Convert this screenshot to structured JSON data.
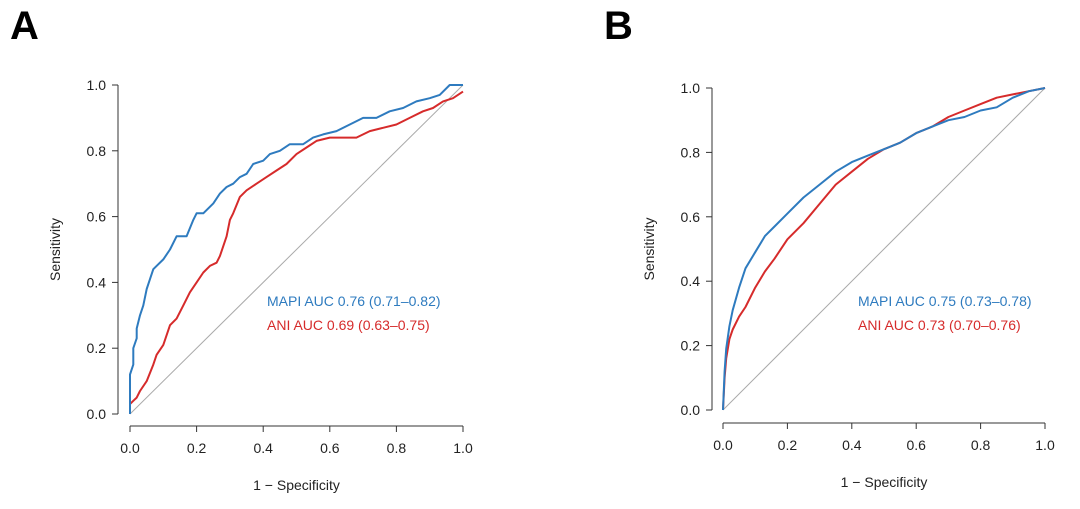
{
  "panels": [
    {
      "letter": "A"
    },
    {
      "letter": "B"
    }
  ],
  "chart_data": [
    {
      "type": "line",
      "panel": "A",
      "xlabel": "1 − Specificity",
      "ylabel": "Sensitivity",
      "xlim": [
        0,
        1
      ],
      "ylim": [
        0,
        1
      ],
      "xticks": [
        "0.0",
        "0.2",
        "0.4",
        "0.6",
        "0.8",
        "1.0"
      ],
      "yticks": [
        "0.0",
        "0.2",
        "0.4",
        "0.6",
        "0.8",
        "1.0"
      ],
      "grid": false,
      "legend_position": "bottom-right",
      "reference_line": {
        "x": [
          0,
          1
        ],
        "y": [
          0,
          1
        ],
        "color": "#aaaaaa"
      },
      "series": [
        {
          "name": "MAPI AUC 0.76 (0.71–0.82)",
          "color": "#2e7bbf",
          "x": [
            0,
            0,
            0.01,
            0.01,
            0.02,
            0.02,
            0.03,
            0.04,
            0.05,
            0.06,
            0.07,
            0.08,
            0.1,
            0.12,
            0.14,
            0.17,
            0.19,
            0.2,
            0.22,
            0.25,
            0.27,
            0.29,
            0.31,
            0.33,
            0.35,
            0.37,
            0.4,
            0.42,
            0.45,
            0.48,
            0.52,
            0.55,
            0.58,
            0.62,
            0.66,
            0.7,
            0.74,
            0.78,
            0.82,
            0.86,
            0.9,
            0.93,
            0.96,
            1.0
          ],
          "y": [
            0,
            0.12,
            0.15,
            0.2,
            0.23,
            0.26,
            0.3,
            0.33,
            0.38,
            0.41,
            0.44,
            0.45,
            0.47,
            0.5,
            0.54,
            0.54,
            0.59,
            0.61,
            0.61,
            0.64,
            0.67,
            0.69,
            0.7,
            0.72,
            0.73,
            0.76,
            0.77,
            0.79,
            0.8,
            0.82,
            0.82,
            0.84,
            0.85,
            0.86,
            0.88,
            0.9,
            0.9,
            0.92,
            0.93,
            0.95,
            0.96,
            0.97,
            1.0,
            1.0
          ]
        },
        {
          "name": "ANI AUC 0.69 (0.63–0.75)",
          "color": "#d62b2b",
          "x": [
            0,
            0,
            0.01,
            0.02,
            0.03,
            0.05,
            0.07,
            0.08,
            0.1,
            0.12,
            0.14,
            0.16,
            0.18,
            0.2,
            0.22,
            0.24,
            0.26,
            0.27,
            0.29,
            0.3,
            0.31,
            0.33,
            0.35,
            0.38,
            0.41,
            0.44,
            0.47,
            0.5,
            0.53,
            0.56,
            0.6,
            0.64,
            0.68,
            0.72,
            0.76,
            0.8,
            0.84,
            0.88,
            0.91,
            0.94,
            0.97,
            1.0
          ],
          "y": [
            0,
            0.03,
            0.04,
            0.05,
            0.07,
            0.1,
            0.15,
            0.18,
            0.21,
            0.27,
            0.29,
            0.33,
            0.37,
            0.4,
            0.43,
            0.45,
            0.46,
            0.48,
            0.54,
            0.59,
            0.61,
            0.66,
            0.68,
            0.7,
            0.72,
            0.74,
            0.76,
            0.79,
            0.81,
            0.83,
            0.84,
            0.84,
            0.84,
            0.86,
            0.87,
            0.88,
            0.9,
            0.92,
            0.93,
            0.95,
            0.96,
            0.98
          ]
        }
      ]
    },
    {
      "type": "line",
      "panel": "B",
      "xlabel": "1 − Specificity",
      "ylabel": "Sensitivity",
      "xlim": [
        0,
        1
      ],
      "ylim": [
        0,
        1
      ],
      "xticks": [
        "0.0",
        "0.2",
        "0.4",
        "0.6",
        "0.8",
        "1.0"
      ],
      "yticks": [
        "0.0",
        "0.2",
        "0.4",
        "0.6",
        "0.8",
        "1.0"
      ],
      "grid": false,
      "legend_position": "bottom-right",
      "reference_line": {
        "x": [
          0,
          1
        ],
        "y": [
          0,
          1
        ],
        "color": "#aaaaaa"
      },
      "series": [
        {
          "name": "MAPI AUC 0.75 (0.73–0.78)",
          "color": "#2e7bbf",
          "x": [
            0,
            0.005,
            0.01,
            0.02,
            0.03,
            0.05,
            0.07,
            0.1,
            0.13,
            0.16,
            0.2,
            0.25,
            0.3,
            0.35,
            0.4,
            0.45,
            0.5,
            0.55,
            0.6,
            0.65,
            0.7,
            0.75,
            0.8,
            0.85,
            0.9,
            0.95,
            1.0
          ],
          "y": [
            0,
            0.12,
            0.19,
            0.26,
            0.31,
            0.38,
            0.44,
            0.49,
            0.54,
            0.57,
            0.61,
            0.66,
            0.7,
            0.74,
            0.77,
            0.79,
            0.81,
            0.83,
            0.86,
            0.88,
            0.9,
            0.91,
            0.93,
            0.94,
            0.97,
            0.99,
            1.0
          ]
        },
        {
          "name": "ANI AUC 0.73 (0.70–0.76)",
          "color": "#d62b2b",
          "x": [
            0,
            0.005,
            0.01,
            0.02,
            0.03,
            0.05,
            0.07,
            0.1,
            0.13,
            0.16,
            0.2,
            0.25,
            0.3,
            0.35,
            0.4,
            0.45,
            0.5,
            0.55,
            0.6,
            0.65,
            0.7,
            0.75,
            0.8,
            0.85,
            0.9,
            0.95,
            1.0
          ],
          "y": [
            0,
            0.1,
            0.16,
            0.22,
            0.25,
            0.29,
            0.32,
            0.38,
            0.43,
            0.47,
            0.53,
            0.58,
            0.64,
            0.7,
            0.74,
            0.78,
            0.81,
            0.83,
            0.86,
            0.88,
            0.91,
            0.93,
            0.95,
            0.97,
            0.98,
            0.99,
            1.0
          ]
        }
      ]
    }
  ]
}
